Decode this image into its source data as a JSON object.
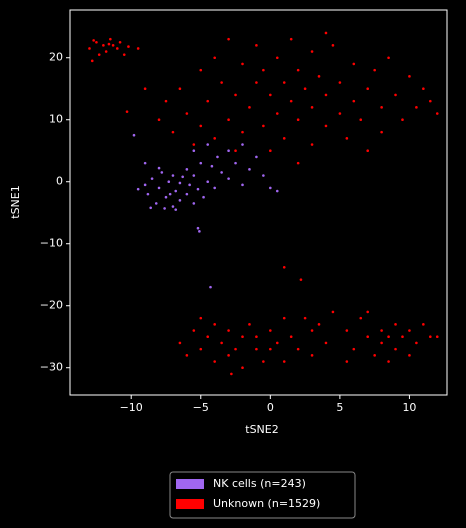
{
  "chart_data": {
    "type": "scatter",
    "x_label": "tSNE2",
    "y_label": "tSNE1",
    "xlim": [
      -14.4,
      12.7
    ],
    "ylim": [
      -34.4,
      27.7
    ],
    "xticks": [
      {
        "value": -10,
        "label": "−10"
      },
      {
        "value": -5,
        "label": "−5"
      },
      0,
      5,
      10
    ],
    "yticks": [
      {
        "value": -30,
        "label": "−30"
      },
      {
        "value": -20,
        "label": "−20"
      },
      {
        "value": -10,
        "label": "−10"
      },
      0,
      10,
      20
    ],
    "series": [
      {
        "name": "NK cells (n=243)",
        "color": "#a066f0",
        "x": [
          -9.5,
          -9,
          -8.8,
          -8.5,
          -8.2,
          -8,
          -7.8,
          -7.5,
          -7.3,
          -7,
          -7,
          -6.8,
          -6.5,
          -6.3,
          -6,
          -6,
          -5.8,
          -5.5,
          -5.5,
          -5.2,
          -5,
          -4.8,
          -4.5,
          -4.2,
          -4,
          -3.8,
          -3.5,
          -3,
          -3,
          -2.5,
          -2,
          -2,
          -1.5,
          -1,
          -0.5,
          0,
          0.5,
          -4.5,
          -5.5,
          -9.8,
          -9,
          -8.6,
          -7.6,
          -6.8,
          -5.2,
          -5.1,
          -4.3,
          -6.5,
          -7.2,
          -8
        ],
        "values": [
          -1.2,
          -0.5,
          -2,
          0.5,
          -3.5,
          -1,
          1.5,
          -2.5,
          0,
          -4,
          1,
          -1.5,
          -3,
          0.8,
          -2,
          2,
          -0.5,
          -3.5,
          1,
          -1.2,
          3,
          -2.5,
          0,
          2.5,
          -1,
          4,
          1.5,
          5,
          0.5,
          3,
          6,
          -0.5,
          2,
          4,
          1,
          -1,
          -1.5,
          6,
          5,
          7.5,
          3,
          -4.2,
          -4.3,
          -4.5,
          -7.5,
          -8,
          -17,
          -0.2,
          -2,
          2.2
        ]
      },
      {
        "name": "Unknown (n=1529)",
        "color": "#ff0000",
        "x": [
          -13,
          -12.8,
          -12.5,
          -12.3,
          -12,
          -11.8,
          -11.5,
          -11.3,
          -11,
          -10.8,
          -10.5,
          -10.2,
          -11.6,
          -12.7,
          -9.5,
          -8,
          -7.5,
          -7,
          -6.5,
          -6,
          -5.5,
          -5,
          -5,
          -4.5,
          -4,
          -4,
          -3.5,
          -3,
          -3,
          -2.5,
          -2.5,
          -2,
          -2,
          -1.5,
          -1,
          -1,
          -0.5,
          -0.5,
          0,
          0,
          0.5,
          0.5,
          1,
          1,
          1.5,
          1.5,
          2,
          2,
          2,
          2.5,
          3,
          3,
          3,
          3.5,
          4,
          4,
          4.5,
          5,
          5,
          5.5,
          6,
          6,
          6.5,
          7,
          7,
          7.5,
          8,
          8,
          8.5,
          9,
          9.5,
          10,
          10.5,
          11,
          11.5,
          12,
          -10.3,
          -9,
          4,
          1,
          2.2,
          -6.5,
          -6,
          -5.5,
          -5,
          -4.5,
          -4,
          -4,
          -3.5,
          -3,
          -3,
          -2.5,
          -2,
          -2,
          -1.5,
          -1,
          -1,
          -0.5,
          0,
          0,
          0.5,
          1,
          1,
          1.5,
          2,
          2.5,
          3,
          3,
          3.5,
          4,
          4.5,
          -2.8,
          -5,
          5.5,
          6,
          6.5,
          7,
          7.5,
          8,
          8,
          8.5,
          9,
          9,
          9.5,
          10,
          10,
          10.5,
          11,
          11.5,
          12,
          8.5,
          7,
          5.5
        ],
        "values": [
          21.5,
          19.5,
          22.5,
          20.5,
          22,
          21,
          23,
          22,
          21.5,
          22.5,
          20.5,
          21.8,
          22.2,
          22.8,
          21.5,
          10,
          13,
          8,
          15,
          11,
          6,
          18,
          9,
          13,
          20,
          7,
          16,
          10,
          23,
          5,
          14,
          19,
          8,
          12,
          22,
          16,
          9,
          18,
          14,
          5,
          20,
          11,
          16,
          7,
          23,
          13,
          18,
          10,
          3,
          15,
          21,
          12,
          6,
          17,
          9,
          14,
          22,
          11,
          16,
          7,
          19,
          13,
          10,
          15,
          5,
          18,
          12,
          8,
          20,
          14,
          10,
          17,
          12,
          15,
          13,
          11,
          11.3,
          15,
          24,
          -13.8,
          -15.8,
          -26,
          -28,
          -24,
          -27,
          -25,
          -29,
          -23,
          -26,
          -28,
          -24,
          -27,
          -25,
          -30,
          -23,
          -27,
          -25,
          -29,
          -24,
          -27,
          -26,
          -22,
          -29,
          -25,
          -27,
          -22,
          -24,
          -28,
          -23,
          -26,
          -21,
          -31,
          -22,
          -24,
          -27,
          -22,
          -25,
          -28,
          -24,
          -26,
          -25,
          -23,
          -27,
          -25,
          -24,
          -28,
          -26,
          -23,
          -25,
          -25,
          -29,
          -21,
          -29
        ]
      }
    ]
  }
}
